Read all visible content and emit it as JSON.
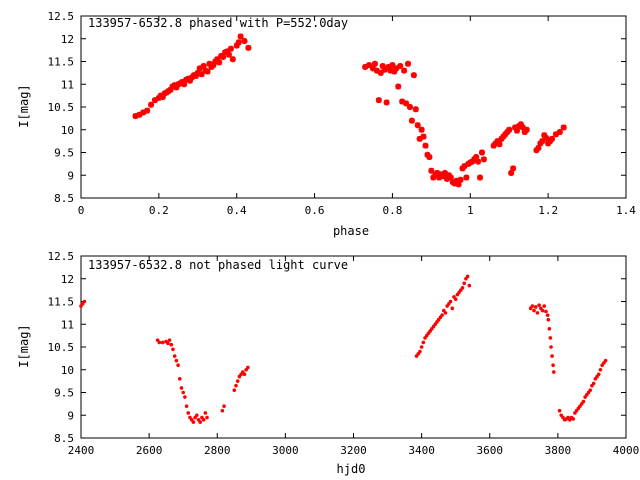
{
  "colors": {
    "points": "#ff0000",
    "axes": "#000000",
    "background": "#ffffff"
  },
  "chart_data": [
    {
      "type": "scatter",
      "title": "133957-6532.8 phased with P=552.0day",
      "xlabel": "phase",
      "ylabel": "I[mag]",
      "xlim": [
        0,
        1.4
      ],
      "ylim": [
        12.5,
        8.5
      ],
      "y_inverted": true,
      "grid": false,
      "marker": "star",
      "xticks": [
        "0",
        "0.2",
        "0.4",
        "0.6",
        "0.8",
        "1",
        "1.2",
        "1.4"
      ],
      "yticks": [
        "8.5",
        "9",
        "9.5",
        "10",
        "10.5",
        "11",
        "11.5",
        "12",
        "12.5"
      ],
      "series": [
        {
          "points": [
            [
              0.14,
              10.3
            ],
            [
              0.15,
              10.33
            ],
            [
              0.16,
              10.38
            ],
            [
              0.17,
              10.42
            ],
            [
              0.18,
              10.55
            ],
            [
              0.19,
              10.65
            ],
            [
              0.2,
              10.7
            ],
            [
              0.205,
              10.75
            ],
            [
              0.21,
              10.72
            ],
            [
              0.215,
              10.8
            ],
            [
              0.22,
              10.82
            ],
            [
              0.225,
              10.85
            ],
            [
              0.23,
              10.88
            ],
            [
              0.235,
              10.95
            ],
            [
              0.24,
              10.98
            ],
            [
              0.245,
              10.93
            ],
            [
              0.25,
              11.0
            ],
            [
              0.255,
              11.02
            ],
            [
              0.26,
              11.05
            ],
            [
              0.265,
              11.0
            ],
            [
              0.27,
              11.1
            ],
            [
              0.275,
              11.12
            ],
            [
              0.28,
              11.08
            ],
            [
              0.285,
              11.15
            ],
            [
              0.29,
              11.2
            ],
            [
              0.295,
              11.18
            ],
            [
              0.3,
              11.25
            ],
            [
              0.305,
              11.35
            ],
            [
              0.31,
              11.22
            ],
            [
              0.315,
              11.4
            ],
            [
              0.32,
              11.3
            ],
            [
              0.325,
              11.28
            ],
            [
              0.33,
              11.45
            ],
            [
              0.335,
              11.38
            ],
            [
              0.34,
              11.42
            ],
            [
              0.345,
              11.5
            ],
            [
              0.35,
              11.55
            ],
            [
              0.355,
              11.48
            ],
            [
              0.36,
              11.62
            ],
            [
              0.365,
              11.6
            ],
            [
              0.37,
              11.7
            ],
            [
              0.375,
              11.72
            ],
            [
              0.38,
              11.65
            ],
            [
              0.385,
              11.78
            ],
            [
              0.39,
              11.55
            ],
            [
              0.4,
              11.85
            ],
            [
              0.405,
              11.92
            ],
            [
              0.41,
              12.05
            ],
            [
              0.42,
              11.95
            ],
            [
              0.43,
              11.8
            ],
            [
              0.73,
              11.38
            ],
            [
              0.74,
              11.42
            ],
            [
              0.75,
              11.35
            ],
            [
              0.755,
              11.45
            ],
            [
              0.76,
              11.3
            ],
            [
              0.765,
              10.65
            ],
            [
              0.77,
              11.25
            ],
            [
              0.775,
              11.4
            ],
            [
              0.78,
              11.32
            ],
            [
              0.785,
              10.6
            ],
            [
              0.79,
              11.38
            ],
            [
              0.795,
              11.3
            ],
            [
              0.8,
              11.42
            ],
            [
              0.805,
              11.28
            ],
            [
              0.81,
              11.35
            ],
            [
              0.815,
              10.95
            ],
            [
              0.82,
              11.4
            ],
            [
              0.825,
              10.62
            ],
            [
              0.83,
              11.3
            ],
            [
              0.835,
              10.58
            ],
            [
              0.84,
              11.45
            ],
            [
              0.845,
              10.5
            ],
            [
              0.85,
              10.2
            ],
            [
              0.855,
              11.2
            ],
            [
              0.86,
              10.45
            ],
            [
              0.865,
              10.1
            ],
            [
              0.87,
              9.8
            ],
            [
              0.875,
              10.0
            ],
            [
              0.88,
              9.85
            ],
            [
              0.885,
              9.65
            ],
            [
              0.89,
              9.45
            ],
            [
              0.895,
              9.4
            ],
            [
              0.9,
              9.1
            ],
            [
              0.905,
              8.95
            ],
            [
              0.91,
              9.0
            ],
            [
              0.915,
              9.05
            ],
            [
              0.92,
              8.95
            ],
            [
              0.925,
              9.02
            ],
            [
              0.93,
              8.98
            ],
            [
              0.935,
              9.05
            ],
            [
              0.94,
              8.92
            ],
            [
              0.945,
              9.0
            ],
            [
              0.95,
              8.95
            ],
            [
              0.955,
              8.85
            ],
            [
              0.96,
              8.82
            ],
            [
              0.965,
              8.88
            ],
            [
              0.97,
              8.8
            ],
            [
              0.975,
              8.9
            ],
            [
              0.98,
              9.15
            ],
            [
              0.985,
              9.2
            ],
            [
              0.99,
              8.95
            ],
            [
              0.995,
              9.25
            ],
            [
              1.0,
              9.28
            ],
            [
              1.005,
              9.3
            ],
            [
              1.01,
              9.35
            ],
            [
              1.015,
              9.4
            ],
            [
              1.02,
              9.3
            ],
            [
              1.025,
              8.95
            ],
            [
              1.03,
              9.5
            ],
            [
              1.035,
              9.35
            ],
            [
              1.06,
              9.65
            ],
            [
              1.065,
              9.7
            ],
            [
              1.07,
              9.75
            ],
            [
              1.075,
              9.68
            ],
            [
              1.08,
              9.8
            ],
            [
              1.085,
              9.85
            ],
            [
              1.09,
              9.9
            ],
            [
              1.095,
              9.95
            ],
            [
              1.1,
              10.0
            ],
            [
              1.105,
              9.05
            ],
            [
              1.11,
              9.15
            ],
            [
              1.115,
              10.05
            ],
            [
              1.12,
              9.98
            ],
            [
              1.125,
              10.08
            ],
            [
              1.13,
              10.12
            ],
            [
              1.135,
              10.05
            ],
            [
              1.14,
              9.95
            ],
            [
              1.145,
              10.0
            ],
            [
              1.17,
              9.55
            ],
            [
              1.175,
              9.6
            ],
            [
              1.18,
              9.7
            ],
            [
              1.185,
              9.75
            ],
            [
              1.19,
              9.88
            ],
            [
              1.195,
              9.82
            ],
            [
              1.2,
              9.7
            ],
            [
              1.205,
              9.75
            ],
            [
              1.21,
              9.8
            ],
            [
              1.22,
              9.9
            ],
            [
              1.23,
              9.95
            ],
            [
              1.24,
              10.05
            ]
          ]
        }
      ]
    },
    {
      "type": "scatter",
      "title": "133957-6532.8 not phased light curve",
      "xlabel": "hjd0",
      "ylabel": "I[mag]",
      "xlim": [
        2400,
        4000
      ],
      "ylim": [
        12.5,
        8.5
      ],
      "y_inverted": true,
      "grid": false,
      "marker": "dot",
      "xticks": [
        "2400",
        "2600",
        "2800",
        "3000",
        "3200",
        "3400",
        "3600",
        "3800",
        "4000"
      ],
      "yticks": [
        "8.5",
        "9",
        "9.5",
        "10",
        "10.5",
        "11",
        "11.5",
        "12",
        "12.5"
      ],
      "series": [
        {
          "points": [
            [
              2400,
              11.4
            ],
            [
              2405,
              11.45
            ],
            [
              2410,
              11.5
            ],
            [
              2625,
              10.65
            ],
            [
              2630,
              10.6
            ],
            [
              2640,
              10.6
            ],
            [
              2650,
              10.62
            ],
            [
              2655,
              10.58
            ],
            [
              2660,
              10.65
            ],
            [
              2665,
              10.55
            ],
            [
              2670,
              10.45
            ],
            [
              2675,
              10.3
            ],
            [
              2680,
              10.2
            ],
            [
              2685,
              10.1
            ],
            [
              2690,
              9.8
            ],
            [
              2695,
              9.6
            ],
            [
              2700,
              9.5
            ],
            [
              2705,
              9.4
            ],
            [
              2710,
              9.2
            ],
            [
              2715,
              9.05
            ],
            [
              2720,
              8.95
            ],
            [
              2725,
              8.9
            ],
            [
              2730,
              8.85
            ],
            [
              2735,
              8.95
            ],
            [
              2740,
              9.0
            ],
            [
              2745,
              8.9
            ],
            [
              2750,
              8.85
            ],
            [
              2755,
              8.95
            ],
            [
              2760,
              8.9
            ],
            [
              2765,
              9.05
            ],
            [
              2770,
              8.95
            ],
            [
              2815,
              9.1
            ],
            [
              2820,
              9.2
            ],
            [
              2850,
              9.55
            ],
            [
              2855,
              9.65
            ],
            [
              2860,
              9.75
            ],
            [
              2865,
              9.85
            ],
            [
              2870,
              9.9
            ],
            [
              2875,
              9.95
            ],
            [
              2880,
              9.9
            ],
            [
              2885,
              10.0
            ],
            [
              2890,
              10.05
            ],
            [
              3385,
              10.3
            ],
            [
              3390,
              10.35
            ],
            [
              3395,
              10.4
            ],
            [
              3400,
              10.5
            ],
            [
              3405,
              10.6
            ],
            [
              3410,
              10.7
            ],
            [
              3415,
              10.75
            ],
            [
              3420,
              10.8
            ],
            [
              3425,
              10.85
            ],
            [
              3430,
              10.9
            ],
            [
              3435,
              10.95
            ],
            [
              3440,
              11.0
            ],
            [
              3445,
              11.05
            ],
            [
              3450,
              11.1
            ],
            [
              3455,
              11.15
            ],
            [
              3460,
              11.2
            ],
            [
              3465,
              11.3
            ],
            [
              3470,
              11.25
            ],
            [
              3475,
              11.4
            ],
            [
              3480,
              11.45
            ],
            [
              3485,
              11.5
            ],
            [
              3490,
              11.35
            ],
            [
              3495,
              11.6
            ],
            [
              3500,
              11.55
            ],
            [
              3505,
              11.65
            ],
            [
              3510,
              11.7
            ],
            [
              3515,
              11.75
            ],
            [
              3520,
              11.8
            ],
            [
              3525,
              11.9
            ],
            [
              3530,
              12.0
            ],
            [
              3535,
              12.05
            ],
            [
              3540,
              11.85
            ],
            [
              3720,
              11.35
            ],
            [
              3725,
              11.4
            ],
            [
              3730,
              11.3
            ],
            [
              3735,
              11.38
            ],
            [
              3740,
              11.25
            ],
            [
              3745,
              11.42
            ],
            [
              3750,
              11.35
            ],
            [
              3755,
              11.3
            ],
            [
              3760,
              11.4
            ],
            [
              3765,
              11.28
            ],
            [
              3770,
              11.2
            ],
            [
              3772,
              11.1
            ],
            [
              3775,
              10.9
            ],
            [
              3778,
              10.7
            ],
            [
              3780,
              10.5
            ],
            [
              3783,
              10.3
            ],
            [
              3786,
              10.1
            ],
            [
              3788,
              9.95
            ],
            [
              3805,
              9.1
            ],
            [
              3810,
              9.0
            ],
            [
              3815,
              8.95
            ],
            [
              3820,
              8.9
            ],
            [
              3825,
              8.92
            ],
            [
              3830,
              8.95
            ],
            [
              3835,
              8.9
            ],
            [
              3840,
              8.95
            ],
            [
              3845,
              8.92
            ],
            [
              3850,
              9.05
            ],
            [
              3855,
              9.1
            ],
            [
              3860,
              9.15
            ],
            [
              3865,
              9.2
            ],
            [
              3870,
              9.25
            ],
            [
              3875,
              9.3
            ],
            [
              3880,
              9.4
            ],
            [
              3885,
              9.45
            ],
            [
              3890,
              9.5
            ],
            [
              3895,
              9.55
            ],
            [
              3900,
              9.65
            ],
            [
              3905,
              9.7
            ],
            [
              3910,
              9.8
            ],
            [
              3915,
              9.85
            ],
            [
              3920,
              9.9
            ],
            [
              3925,
              10.0
            ],
            [
              3930,
              10.1
            ],
            [
              3935,
              10.15
            ],
            [
              3940,
              10.2
            ]
          ]
        }
      ]
    }
  ]
}
